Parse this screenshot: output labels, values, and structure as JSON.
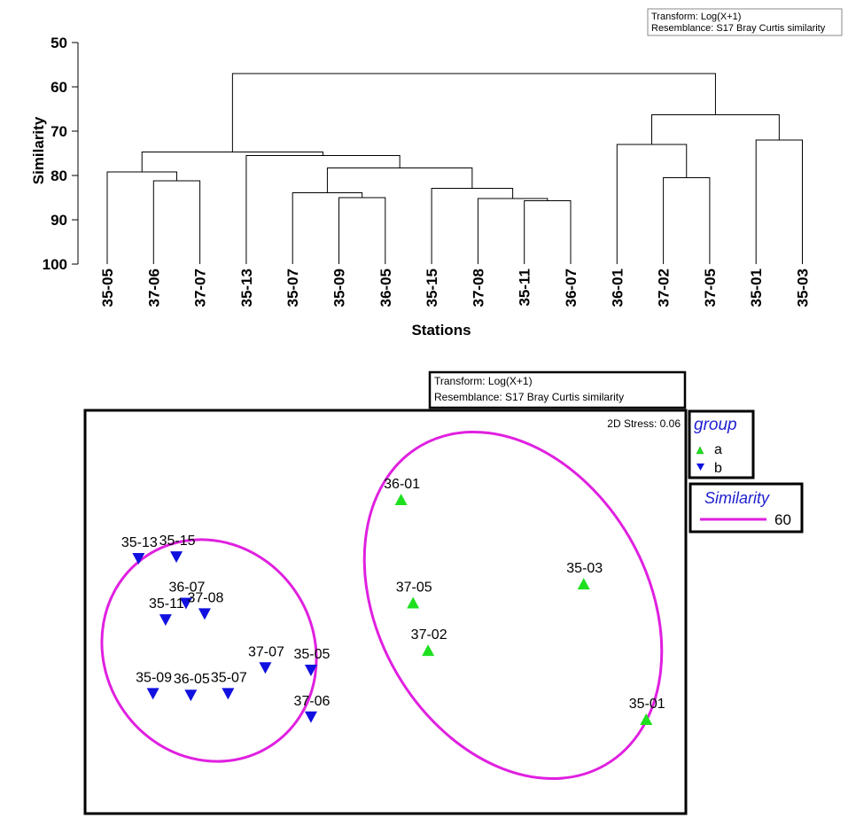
{
  "chart_data": [
    {
      "type": "dendrogram",
      "ylabel": "Similarity",
      "xlabel": "Stations",
      "ylim": [
        50,
        100
      ],
      "yticks": [
        "50",
        "60",
        "70",
        "80",
        "90",
        "100"
      ],
      "leaves": [
        "35-05",
        "37-06",
        "37-07",
        "35-13",
        "35-07",
        "35-09",
        "36-05",
        "35-15",
        "37-08",
        "35-11",
        "36-07",
        "36-01",
        "37-02",
        "37-05",
        "35-01",
        "35-03"
      ],
      "merges": [
        {
          "a": "37-06",
          "b": "37-07",
          "similarity": 81.2
        },
        {
          "a": "35-05",
          "b": "(37-06,37-07)",
          "similarity": 79.2
        },
        {
          "a": "35-09",
          "b": "36-05",
          "similarity": 85.0
        },
        {
          "a": "35-07",
          "b": "(35-09,36-05)",
          "similarity": 83.9
        },
        {
          "a": "35-11",
          "b": "36-07",
          "similarity": 85.7
        },
        {
          "a": "37-08",
          "b": "(35-11,36-07)",
          "similarity": 85.2
        },
        {
          "a": "35-15",
          "b": "(37-08,35-11,36-07)",
          "similarity": 82.9
        },
        {
          "a": "(35-07,35-09,36-05)",
          "b": "(35-15,37-08,35-11,36-07)",
          "similarity": 78.3
        },
        {
          "a": "35-13",
          "b": "(35-07..36-07)",
          "similarity": 75.5
        },
        {
          "a": "(35-05,37-06,37-07)",
          "b": "(35-13..36-07)",
          "similarity": 74.7
        },
        {
          "a": "37-02",
          "b": "37-05",
          "similarity": 80.5
        },
        {
          "a": "36-01",
          "b": "(37-02,37-05)",
          "similarity": 73.0
        },
        {
          "a": "35-01",
          "b": "35-03",
          "similarity": 72.0
        },
        {
          "a": "(36-01,37-02,37-05)",
          "b": "(35-01,35-03)",
          "similarity": 66.3
        },
        {
          "a": "group-b",
          "b": "group-a",
          "similarity": 57.0
        }
      ],
      "annotation": [
        "Transform: Log(X+1)",
        "Resemblance: S17 Bray Curtis similarity"
      ]
    },
    {
      "type": "scatter",
      "title": "",
      "stress_label": "2D Stress: 0.06",
      "annotation": [
        "Transform: Log(X+1)",
        "Resemblance: S17 Bray Curtis similarity"
      ],
      "legend": {
        "title": "group",
        "items": [
          {
            "label": "a",
            "marker": "triangle-up",
            "color": "#1fe01f"
          },
          {
            "label": "b",
            "marker": "triangle-down",
            "color": "#1010e0"
          }
        ]
      },
      "similarity_legend": {
        "title": "Similarity",
        "value_label": "60",
        "color": "#e020e0"
      },
      "xlim": [
        0,
        1
      ],
      "ylim": [
        0,
        1
      ],
      "points": [
        {
          "label": "36-01",
          "group": "a",
          "x": 0.526,
          "y": 0.778
        },
        {
          "label": "35-03",
          "group": "a",
          "x": 0.83,
          "y": 0.569
        },
        {
          "label": "37-05",
          "group": "a",
          "x": 0.546,
          "y": 0.522
        },
        {
          "label": "37-02",
          "group": "a",
          "x": 0.571,
          "y": 0.404
        },
        {
          "label": "35-01",
          "group": "a",
          "x": 0.934,
          "y": 0.233
        },
        {
          "label": "35-13",
          "group": "b",
          "x": 0.089,
          "y": 0.633
        },
        {
          "label": "35-15",
          "group": "b",
          "x": 0.152,
          "y": 0.637
        },
        {
          "label": "36-07",
          "group": "b",
          "x": 0.168,
          "y": 0.522
        },
        {
          "label": "37-08",
          "group": "b",
          "x": 0.199,
          "y": 0.496
        },
        {
          "label": "35-11",
          "group": "b",
          "x": 0.134,
          "y": 0.481
        },
        {
          "label": "37-07",
          "group": "b",
          "x": 0.3,
          "y": 0.362
        },
        {
          "label": "35-05",
          "group": "b",
          "x": 0.376,
          "y": 0.356
        },
        {
          "label": "35-09",
          "group": "b",
          "x": 0.113,
          "y": 0.298
        },
        {
          "label": "36-05",
          "group": "b",
          "x": 0.176,
          "y": 0.294
        },
        {
          "label": "35-07",
          "group": "b",
          "x": 0.238,
          "y": 0.298
        },
        {
          "label": "37-06",
          "group": "b",
          "x": 0.376,
          "y": 0.24
        }
      ]
    }
  ]
}
